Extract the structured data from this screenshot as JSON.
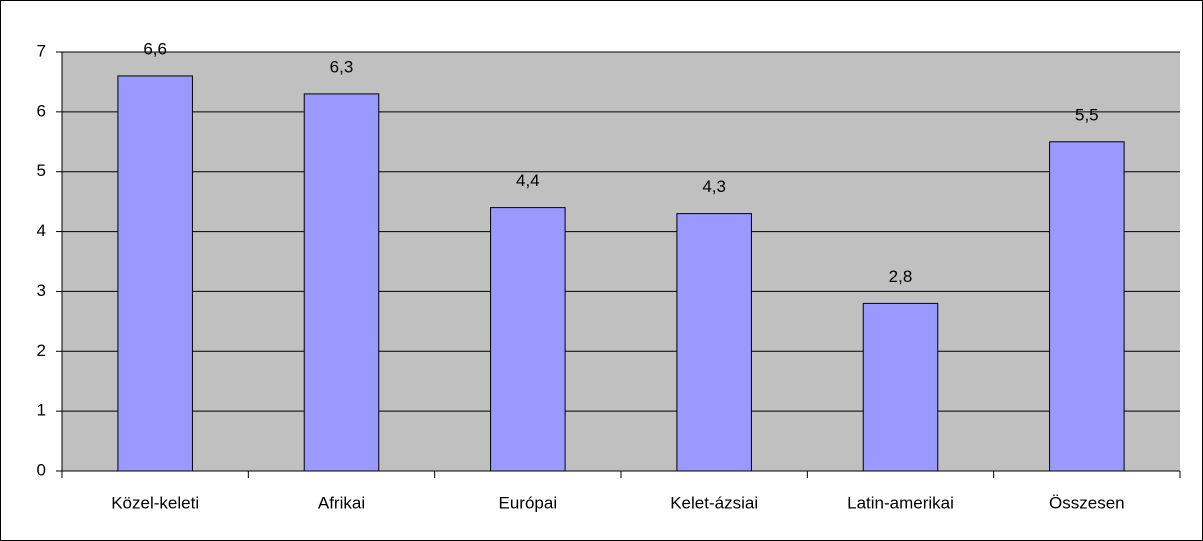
{
  "chart_data": {
    "type": "bar",
    "categories": [
      "Közel-keleti",
      "Afrikai",
      "Európai",
      "Kelet-ázsiai",
      "Latin-amerikai",
      "Összesen"
    ],
    "values": [
      6.6,
      6.3,
      4.4,
      4.3,
      2.8,
      5.5
    ],
    "value_labels": [
      "6,6",
      "6,3",
      "4,4",
      "4,3",
      "2,8",
      "5,5"
    ],
    "color": "#9999ff",
    "ylim": [
      0,
      7
    ],
    "yticks": [
      0,
      1,
      2,
      3,
      4,
      5,
      6,
      7
    ],
    "grid": true
  }
}
